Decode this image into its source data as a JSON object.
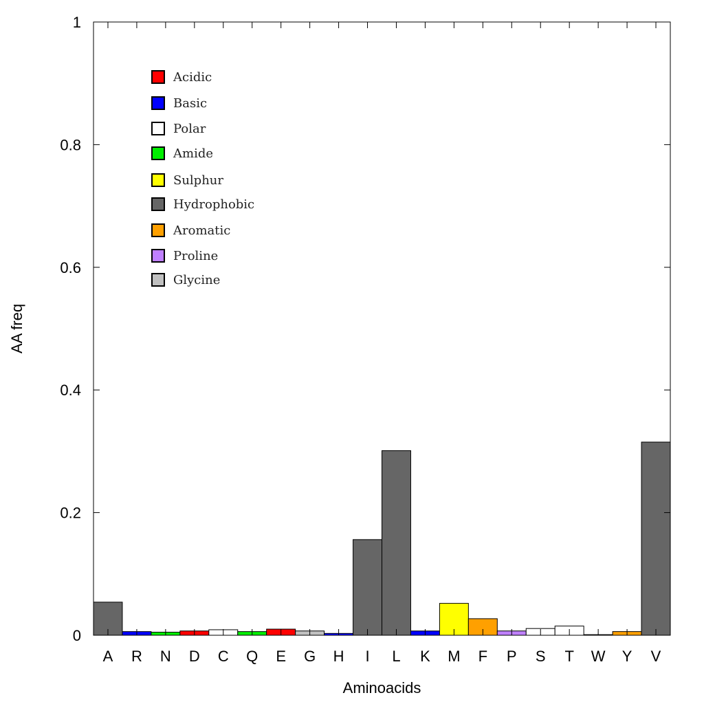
{
  "chart_data": {
    "type": "bar",
    "title": "",
    "xlabel": "Aminoacids",
    "ylabel": "AA freq",
    "ylim": [
      0,
      1
    ],
    "yticks": [
      "0",
      "0.2",
      "0.4",
      "0.6",
      "0.8",
      "1"
    ],
    "categories": [
      "A",
      "R",
      "N",
      "D",
      "C",
      "Q",
      "E",
      "G",
      "H",
      "I",
      "L",
      "K",
      "M",
      "F",
      "P",
      "S",
      "T",
      "W",
      "Y",
      "V"
    ],
    "values": [
      0.054,
      0.006,
      0.005,
      0.007,
      0.009,
      0.006,
      0.01,
      0.007,
      0.003,
      0.156,
      0.301,
      0.007,
      0.052,
      0.027,
      0.007,
      0.011,
      0.015,
      0.001,
      0.006,
      0.315
    ],
    "groups": [
      "Hydrophobic",
      "Basic",
      "Amide",
      "Acidic",
      "Polar",
      "Amide",
      "Acidic",
      "Glycine",
      "Basic",
      "Hydrophobic",
      "Hydrophobic",
      "Basic",
      "Sulphur",
      "Aromatic",
      "Proline",
      "Polar",
      "Polar",
      "Aromatic",
      "Aromatic",
      "Hydrophobic"
    ],
    "legend": [
      {
        "label": "Acidic",
        "color": "#ff0000"
      },
      {
        "label": "Basic",
        "color": "#0000ff"
      },
      {
        "label": "Polar",
        "color": "#ffffff"
      },
      {
        "label": "Amide",
        "color": "#00ee00"
      },
      {
        "label": "Sulphur",
        "color": "#ffff00"
      },
      {
        "label": "Hydrophobic",
        "color": "#666666"
      },
      {
        "label": "Aromatic",
        "color": "#ffa000"
      },
      {
        "label": "Proline",
        "color": "#bf80ff"
      },
      {
        "label": "Glycine",
        "color": "#c0c0c0"
      }
    ],
    "legend_position": "top-left",
    "grid": false
  }
}
